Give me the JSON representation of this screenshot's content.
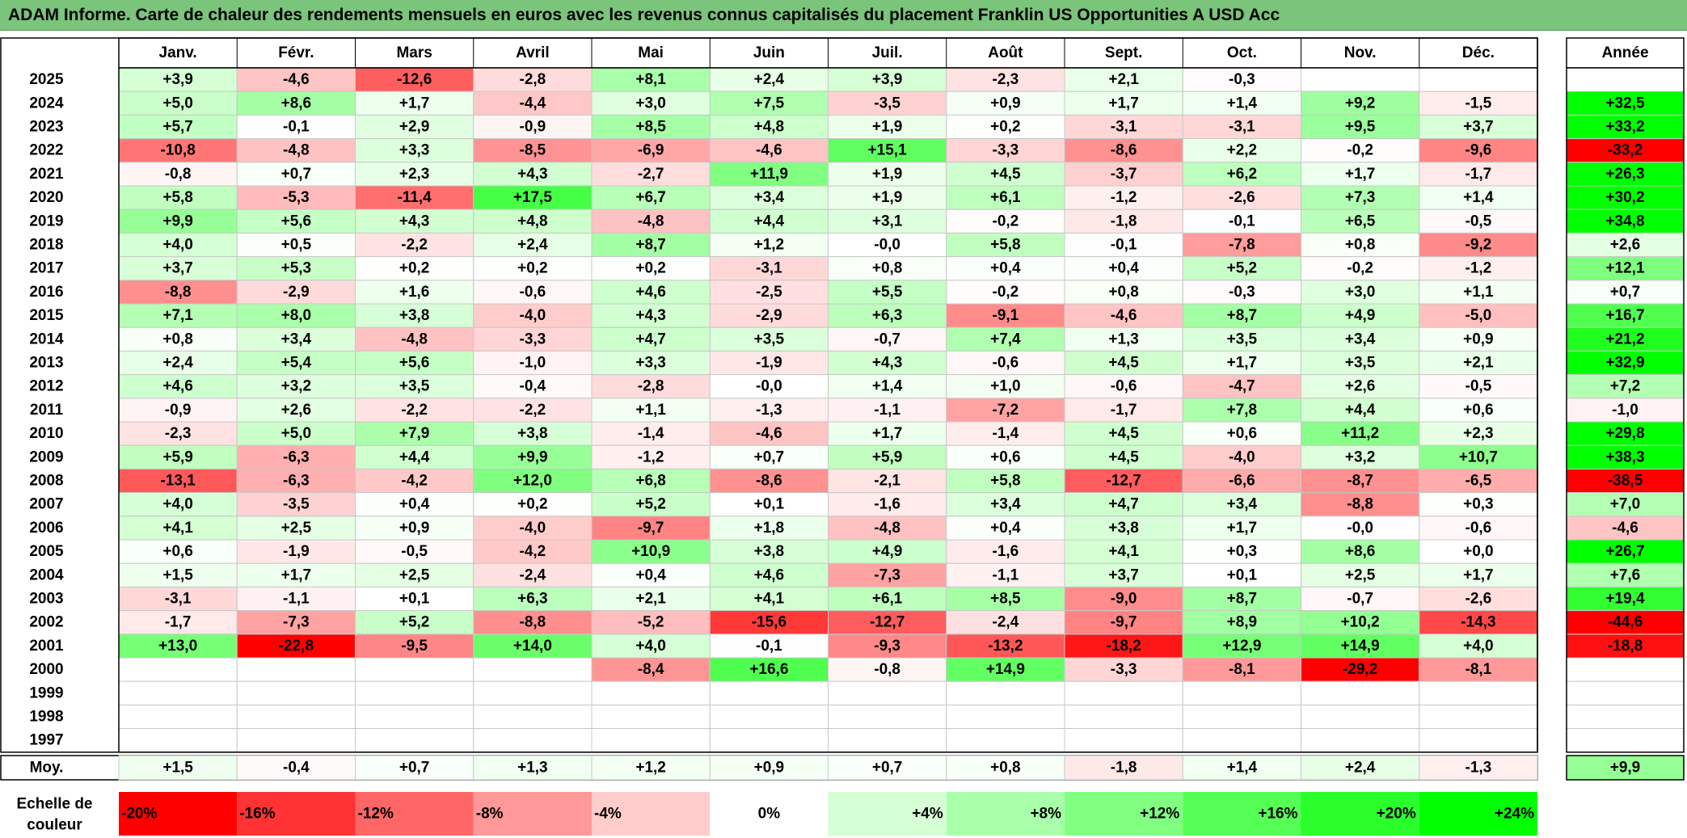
{
  "title": "ADAM Informe. Carte de chaleur des rendements mensuels en euros avec les revenus connus capitalisés du placement Franklin US Opportunities A USD Acc",
  "colors": {
    "title_bg": "#7bc47b",
    "negative_max": "#ff0000",
    "positive_max": "#00ff00",
    "neutral": "#ffffff"
  },
  "chart_data": {
    "type": "heatmap",
    "title": "ADAM Informe. Carte de chaleur des rendements mensuels en euros avec les revenus connus capitalisés du placement Franklin US Opportunities A USD Acc",
    "columns": [
      "Janv.",
      "Févr.",
      "Mars",
      "Avril",
      "Mai",
      "Juin",
      "Juil.",
      "Août",
      "Sept.",
      "Oct.",
      "Nov.",
      "Déc."
    ],
    "year_header": "Année",
    "color_domain": [
      -20,
      0,
      24
    ],
    "rows": [
      {
        "label": "2025",
        "months": [
          "+3,9",
          "-4,6",
          "-12,6",
          "-2,8",
          "+8,1",
          "+2,4",
          "+3,9",
          "-2,3",
          "+2,1",
          "-0,3",
          "",
          ""
        ],
        "year": ""
      },
      {
        "label": "2024",
        "months": [
          "+5,0",
          "+8,6",
          "+1,7",
          "-4,4",
          "+3,0",
          "+7,5",
          "-3,5",
          "+0,9",
          "+1,7",
          "+1,4",
          "+9,2",
          "-1,5"
        ],
        "year": "+32,5"
      },
      {
        "label": "2023",
        "months": [
          "+5,7",
          "-0,1",
          "+2,9",
          "-0,9",
          "+8,5",
          "+4,8",
          "+1,9",
          "+0,2",
          "-3,1",
          "-3,1",
          "+9,5",
          "+3,7"
        ],
        "year": "+33,2"
      },
      {
        "label": "2022",
        "months": [
          "-10,8",
          "-4,8",
          "+3,3",
          "-8,5",
          "-6,9",
          "-4,6",
          "+15,1",
          "-3,3",
          "-8,6",
          "+2,2",
          "-0,2",
          "-9,6"
        ],
        "year": "-33,2"
      },
      {
        "label": "2021",
        "months": [
          "-0,8",
          "+0,7",
          "+2,3",
          "+4,3",
          "-2,7",
          "+11,9",
          "+1,9",
          "+4,5",
          "-3,7",
          "+6,2",
          "+1,7",
          "-1,7"
        ],
        "year": "+26,3"
      },
      {
        "label": "2020",
        "months": [
          "+5,8",
          "-5,3",
          "-11,4",
          "+17,5",
          "+6,7",
          "+3,4",
          "+1,9",
          "+6,1",
          "-1,2",
          "-2,6",
          "+7,3",
          "+1,4"
        ],
        "year": "+30,2"
      },
      {
        "label": "2019",
        "months": [
          "+9,9",
          "+5,6",
          "+4,3",
          "+4,8",
          "-4,8",
          "+4,4",
          "+3,1",
          "-0,2",
          "-1,8",
          "-0,1",
          "+6,5",
          "-0,5"
        ],
        "year": "+34,8"
      },
      {
        "label": "2018",
        "months": [
          "+4,0",
          "+0,5",
          "-2,2",
          "+2,4",
          "+8,7",
          "+1,2",
          "-0,0",
          "+5,8",
          "-0,1",
          "-7,8",
          "+0,8",
          "-9,2"
        ],
        "year": "+2,6"
      },
      {
        "label": "2017",
        "months": [
          "+3,7",
          "+5,3",
          "+0,2",
          "+0,2",
          "+0,2",
          "-3,1",
          "+0,8",
          "+0,4",
          "+0,4",
          "+5,2",
          "-0,2",
          "-1,2"
        ],
        "year": "+12,1"
      },
      {
        "label": "2016",
        "months": [
          "-8,8",
          "-2,9",
          "+1,6",
          "-0,6",
          "+4,6",
          "-2,5",
          "+5,5",
          "-0,2",
          "+0,8",
          "-0,3",
          "+3,0",
          "+1,1"
        ],
        "year": "+0,7"
      },
      {
        "label": "2015",
        "months": [
          "+7,1",
          "+8,0",
          "+3,8",
          "-4,0",
          "+4,3",
          "-2,9",
          "+6,3",
          "-9,1",
          "-4,6",
          "+8,7",
          "+4,9",
          "-5,0"
        ],
        "year": "+16,7"
      },
      {
        "label": "2014",
        "months": [
          "+0,8",
          "+3,4",
          "-4,8",
          "-3,3",
          "+4,7",
          "+3,5",
          "-0,7",
          "+7,4",
          "+1,3",
          "+3,5",
          "+3,4",
          "+0,9"
        ],
        "year": "+21,2"
      },
      {
        "label": "2013",
        "months": [
          "+2,4",
          "+5,4",
          "+5,6",
          "-1,0",
          "+3,3",
          "-1,9",
          "+4,3",
          "-0,6",
          "+4,5",
          "+1,7",
          "+3,5",
          "+2,1"
        ],
        "year": "+32,9"
      },
      {
        "label": "2012",
        "months": [
          "+4,6",
          "+3,2",
          "+3,5",
          "-0,4",
          "-2,8",
          "-0,0",
          "+1,4",
          "+1,0",
          "-0,6",
          "-4,7",
          "+2,6",
          "-0,5"
        ],
        "year": "+7,2"
      },
      {
        "label": "2011",
        "months": [
          "-0,9",
          "+2,6",
          "-2,2",
          "-2,2",
          "+1,1",
          "-1,3",
          "-1,1",
          "-7,2",
          "-1,7",
          "+7,8",
          "+4,4",
          "+0,6"
        ],
        "year": "-1,0"
      },
      {
        "label": "2010",
        "months": [
          "-2,3",
          "+5,0",
          "+7,9",
          "+3,8",
          "-1,4",
          "-4,6",
          "+1,7",
          "-1,4",
          "+4,5",
          "+0,6",
          "+11,2",
          "+2,3"
        ],
        "year": "+29,8"
      },
      {
        "label": "2009",
        "months": [
          "+5,9",
          "-6,3",
          "+4,4",
          "+9,9",
          "-1,2",
          "+0,7",
          "+5,9",
          "+0,6",
          "+4,5",
          "-4,0",
          "+3,2",
          "+10,7"
        ],
        "year": "+38,3"
      },
      {
        "label": "2008",
        "months": [
          "-13,1",
          "-6,3",
          "-4,2",
          "+12,0",
          "+6,8",
          "-8,6",
          "-2,1",
          "+5,8",
          "-12,7",
          "-6,6",
          "-8,7",
          "-6,5"
        ],
        "year": "-38,5"
      },
      {
        "label": "2007",
        "months": [
          "+4,0",
          "-3,5",
          "+0,4",
          "+0,2",
          "+5,2",
          "+0,1",
          "-1,6",
          "+3,4",
          "+4,7",
          "+3,4",
          "-8,8",
          "+0,3"
        ],
        "year": "+7,0"
      },
      {
        "label": "2006",
        "months": [
          "+4,1",
          "+2,5",
          "+0,9",
          "-4,0",
          "-9,7",
          "+1,8",
          "-4,8",
          "+0,4",
          "+3,8",
          "+1,7",
          "-0,0",
          "-0,6"
        ],
        "year": "-4,6"
      },
      {
        "label": "2005",
        "months": [
          "+0,6",
          "-1,9",
          "-0,5",
          "-4,2",
          "+10,9",
          "+3,8",
          "+4,9",
          "-1,6",
          "+4,1",
          "+0,3",
          "+8,6",
          "+0,0"
        ],
        "year": "+26,7"
      },
      {
        "label": "2004",
        "months": [
          "+1,5",
          "+1,7",
          "+2,5",
          "-2,4",
          "+0,4",
          "+4,6",
          "-7,3",
          "-1,1",
          "+3,7",
          "+0,1",
          "+2,5",
          "+1,7"
        ],
        "year": "+7,6"
      },
      {
        "label": "2003",
        "months": [
          "-3,1",
          "-1,1",
          "+0,1",
          "+6,3",
          "+2,1",
          "+4,1",
          "+6,1",
          "+8,5",
          "-9,0",
          "+8,7",
          "-0,7",
          "-2,6"
        ],
        "year": "+19,4"
      },
      {
        "label": "2002",
        "months": [
          "-1,7",
          "-7,3",
          "+5,2",
          "-8,8",
          "-5,2",
          "-15,6",
          "-12,7",
          "-2,4",
          "-9,7",
          "+8,9",
          "+10,2",
          "-14,3"
        ],
        "year": "-44,6"
      },
      {
        "label": "2001",
        "months": [
          "+13,0",
          "-22,8",
          "-9,5",
          "+14,0",
          "+4,0",
          "-0,1",
          "-9,3",
          "-13,2",
          "-18,2",
          "+12,9",
          "+14,9",
          "+4,0"
        ],
        "year": "-18,8"
      },
      {
        "label": "2000",
        "months": [
          "",
          "",
          "",
          "",
          "-8,4",
          "+16,6",
          "-0,8",
          "+14,9",
          "-3,3",
          "-8,1",
          "-29,2",
          "-8,1"
        ],
        "year": ""
      },
      {
        "label": "1999",
        "months": [
          "",
          "",
          "",
          "",
          "",
          "",
          "",
          "",
          "",
          "",
          "",
          ""
        ],
        "year": ""
      },
      {
        "label": "1998",
        "months": [
          "",
          "",
          "",
          "",
          "",
          "",
          "",
          "",
          "",
          "",
          "",
          ""
        ],
        "year": ""
      },
      {
        "label": "1997",
        "months": [
          "",
          "",
          "",
          "",
          "",
          "",
          "",
          "",
          "",
          "",
          "",
          ""
        ],
        "year": ""
      }
    ],
    "average": {
      "label": "Moy.",
      "months": [
        "+1,5",
        "-0,4",
        "+0,7",
        "+1,3",
        "+1,2",
        "+0,9",
        "+0,7",
        "+0,8",
        "-1,8",
        "+1,4",
        "+2,4",
        "-1,3"
      ],
      "year": "+9,9"
    },
    "scale": {
      "label_line1": "Echelle de",
      "label_line2": "couleur",
      "values": [
        -20,
        -16,
        -12,
        -8,
        -4,
        0,
        4,
        8,
        12,
        16,
        20,
        24
      ],
      "labels": [
        "-20%",
        "-16%",
        "-12%",
        "-8%",
        "-4%",
        "0%",
        "+4%",
        "+8%",
        "+12%",
        "+16%",
        "+20%",
        "+24%"
      ]
    }
  }
}
